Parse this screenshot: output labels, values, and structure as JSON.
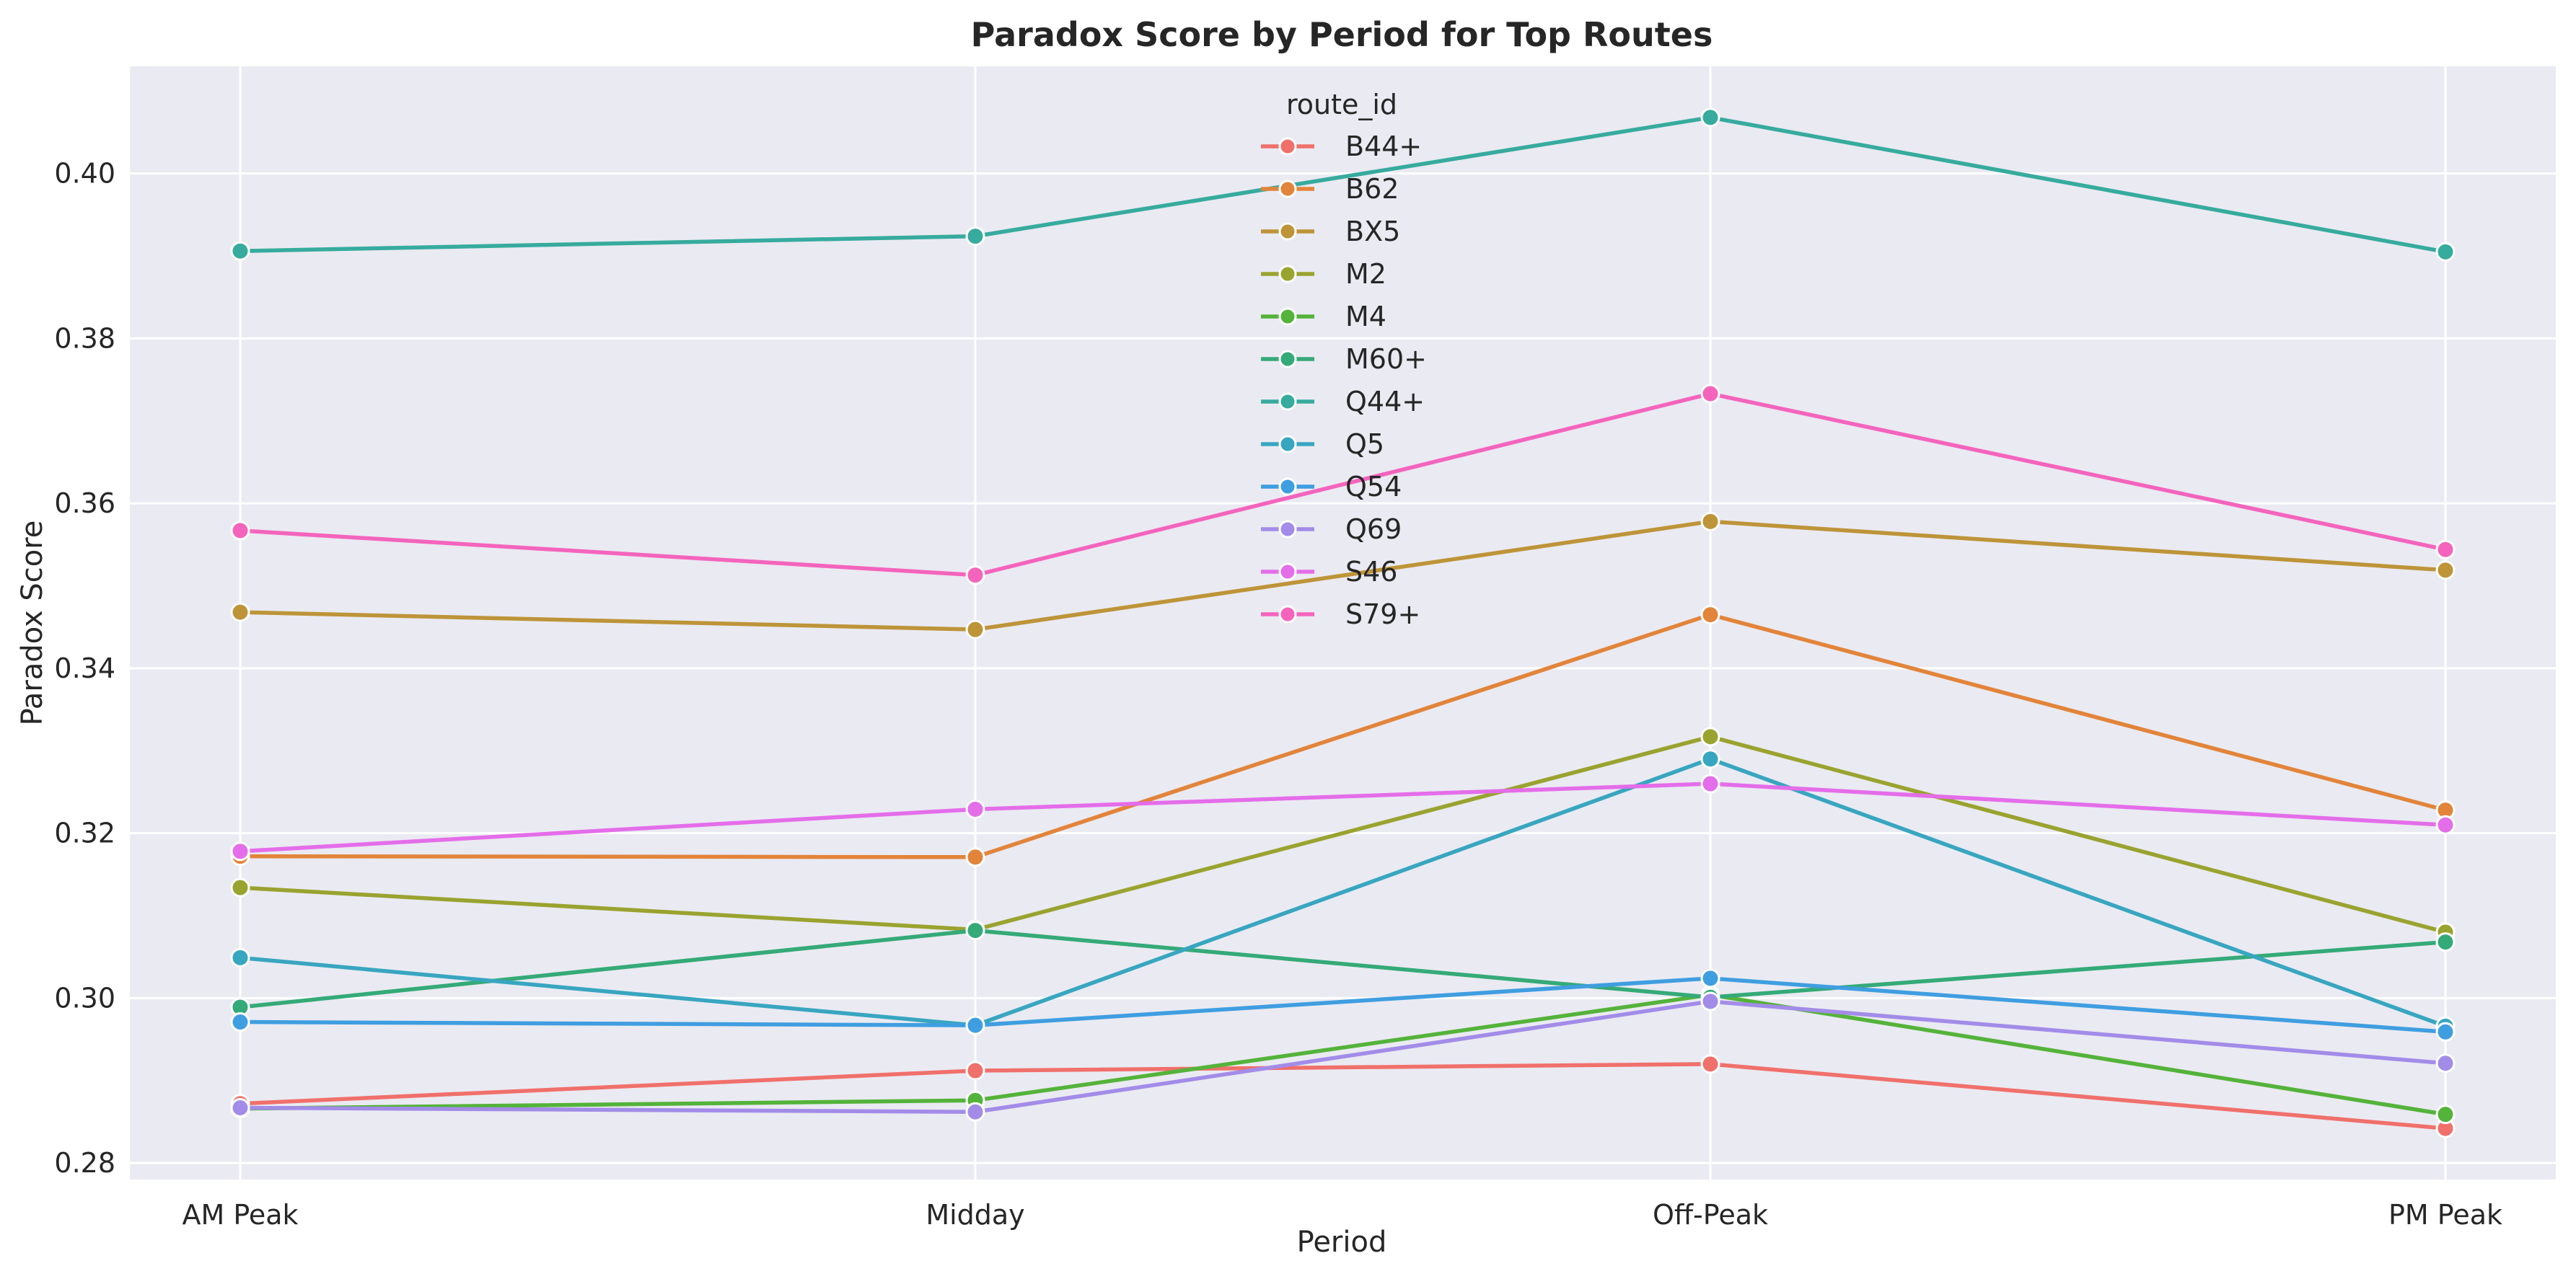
{
  "chart_data": {
    "type": "line",
    "title": "Paradox Score by Period for Top Routes",
    "xlabel": "Period",
    "ylabel": "Paradox Score",
    "categories": [
      "AM Peak",
      "Midday",
      "Off-Peak",
      "PM Peak"
    ],
    "ylim": [
      0.278,
      0.413
    ],
    "yticks": [
      "0.28",
      "0.30",
      "0.32",
      "0.34",
      "0.36",
      "0.38",
      "0.40"
    ],
    "grid": true,
    "legend_title": "route_id",
    "legend_placement": "top-center",
    "series": [
      {
        "name": "B44+",
        "color": "#f0706b",
        "values": [
          0.2872,
          0.2912,
          0.292,
          0.2842
        ]
      },
      {
        "name": "B62",
        "color": "#e2843a",
        "values": [
          0.3172,
          0.3171,
          0.3465,
          0.3228
        ]
      },
      {
        "name": "BX5",
        "color": "#bd9438",
        "values": [
          0.3468,
          0.3447,
          0.3578,
          0.3519
        ]
      },
      {
        "name": "M2",
        "color": "#99a32f",
        "values": [
          0.3134,
          0.3083,
          0.3317,
          0.308
        ]
      },
      {
        "name": "M4",
        "color": "#54b33a",
        "values": [
          0.2866,
          0.2876,
          0.3004,
          0.2859
        ]
      },
      {
        "name": "M60+",
        "color": "#34aa78",
        "values": [
          0.2989,
          0.3082,
          0.3001,
          0.3068
        ]
      },
      {
        "name": "Q44+",
        "color": "#36ab9e",
        "values": [
          0.3906,
          0.3924,
          0.4068,
          0.3905
        ]
      },
      {
        "name": "Q5",
        "color": "#38a6c0",
        "values": [
          0.3049,
          0.2967,
          0.329,
          0.2966
        ]
      },
      {
        "name": "Q54",
        "color": "#3f9ee0",
        "values": [
          0.2971,
          0.2967,
          0.3024,
          0.2959
        ]
      },
      {
        "name": "Q69",
        "color": "#a28ce8",
        "values": [
          0.2867,
          0.2862,
          0.2996,
          0.2921
        ]
      },
      {
        "name": "S46",
        "color": "#e46de9",
        "values": [
          0.3178,
          0.3229,
          0.326,
          0.321
        ]
      },
      {
        "name": "S79+",
        "color": "#f464bd",
        "values": [
          0.3567,
          0.3513,
          0.3733,
          0.3544
        ]
      }
    ]
  }
}
